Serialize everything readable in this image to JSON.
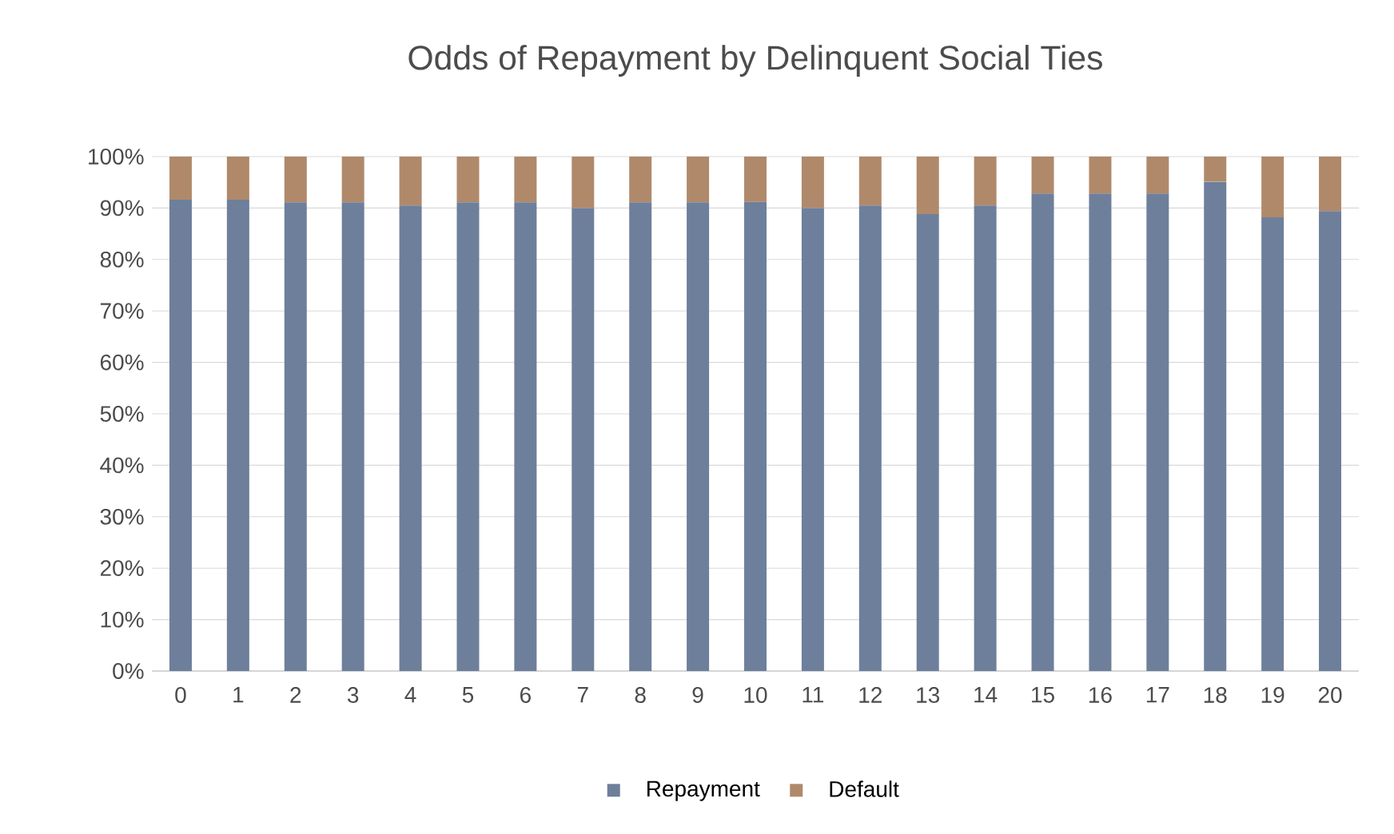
{
  "chart_data": {
    "type": "bar",
    "stacked": true,
    "title": "Odds of Repayment by Delinquent Social Ties",
    "categories": [
      "0",
      "1",
      "2",
      "3",
      "4",
      "5",
      "6",
      "7",
      "8",
      "9",
      "10",
      "11",
      "12",
      "13",
      "14",
      "15",
      "16",
      "17",
      "18",
      "19",
      "20"
    ],
    "series": [
      {
        "name": "Repayment",
        "color": "#6e7f9b",
        "values": [
          91.6,
          91.6,
          91.1,
          91.1,
          90.5,
          91.1,
          91.1,
          90.0,
          91.1,
          91.1,
          91.2,
          90.0,
          90.5,
          88.8,
          90.5,
          92.8,
          92.8,
          92.8,
          95.1,
          88.2,
          89.4
        ]
      },
      {
        "name": "Default",
        "color": "#b0896b",
        "values": [
          8.4,
          8.4,
          8.9,
          8.9,
          9.5,
          8.9,
          8.9,
          10.0,
          8.9,
          8.9,
          8.8,
          10.0,
          9.5,
          11.2,
          9.5,
          7.2,
          7.2,
          7.2,
          4.9,
          11.8,
          10.6
        ]
      }
    ],
    "ylim": [
      0,
      100
    ],
    "yticks": [
      {
        "value": 0,
        "label": "0%"
      },
      {
        "value": 10,
        "label": "10%"
      },
      {
        "value": 20,
        "label": "20%"
      },
      {
        "value": 30,
        "label": "30%"
      },
      {
        "value": 40,
        "label": "40%"
      },
      {
        "value": 50,
        "label": "50%"
      },
      {
        "value": 60,
        "label": "60%"
      },
      {
        "value": 70,
        "label": "70%"
      },
      {
        "value": 80,
        "label": "80%"
      },
      {
        "value": 90,
        "label": "90%"
      },
      {
        "value": 100,
        "label": "100%"
      }
    ],
    "grid": "y",
    "legend": "bottom"
  }
}
